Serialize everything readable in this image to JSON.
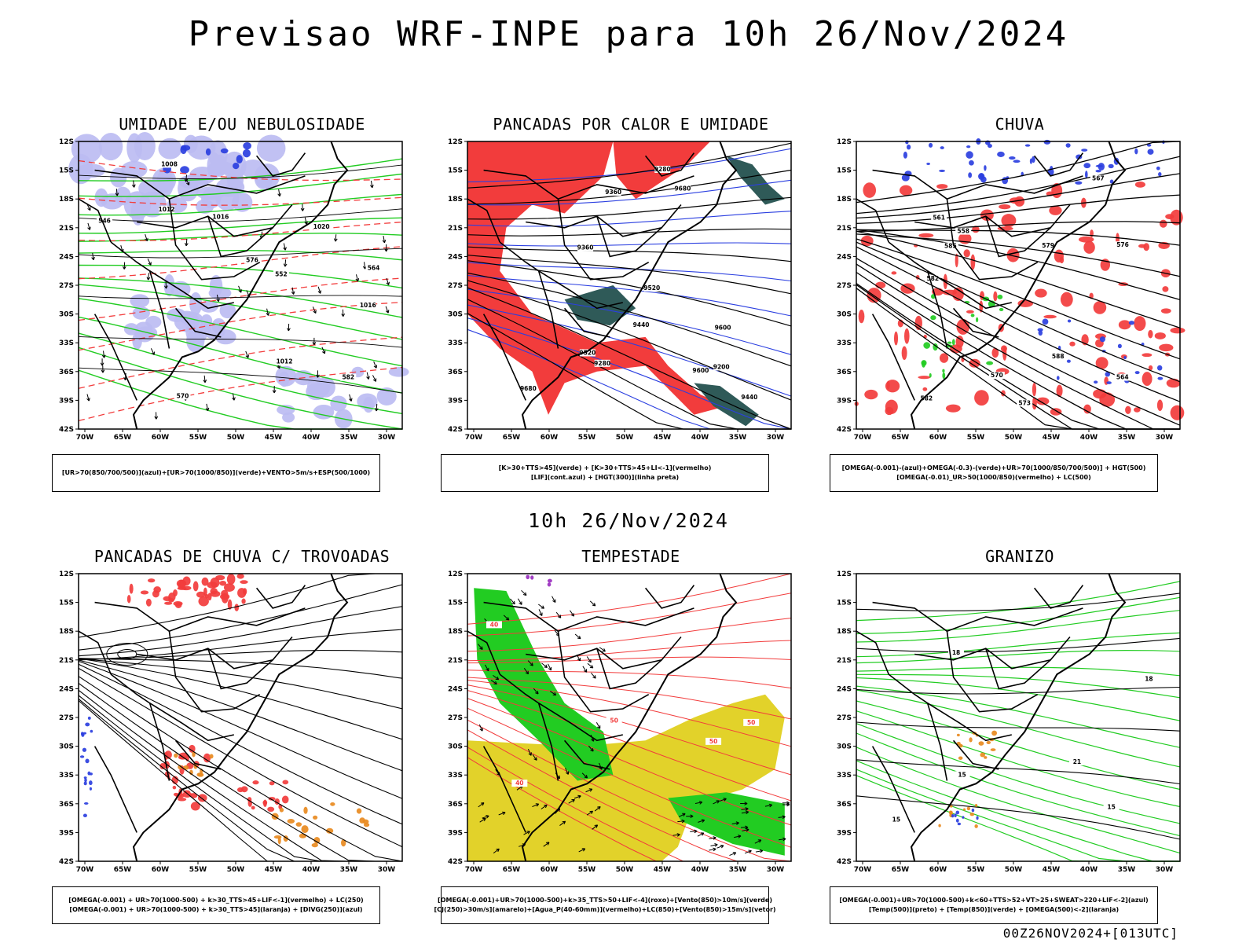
{
  "title": "Previsao WRF-INPE  para 10h 26/Nov/2024",
  "mid_date": "10h 26/Nov/2024",
  "run_id": "00Z26NOV2024+[013UTC]",
  "lat_ticks": [
    "12S",
    "15S",
    "18S",
    "21S",
    "24S",
    "27S",
    "30S",
    "33S",
    "36S",
    "39S",
    "42S"
  ],
  "lon_ticks": [
    "70W",
    "65W",
    "60W",
    "55W",
    "50W",
    "45W",
    "40W",
    "35W",
    "30W"
  ],
  "colors": {
    "red": "#f23c3c",
    "blue": "#2b3fe0",
    "green": "#22cc22",
    "lavender": "#bcbcf2",
    "darkteal": "#2f5a58",
    "yellow": "#e2d22a",
    "orange": "#e88a1f",
    "purple": "#9a2fbf"
  },
  "panels": [
    {
      "title": "UMIDADE E/OU NEBULOSIDADE",
      "legend": [
        "[UR>70(850/700/500)](azul)+[UR>70(1000/850)](verde)+VENTO>5m/s+ESP(500/1000)"
      ],
      "contour_labels": [
        "1016",
        "1012",
        "1020",
        "1016",
        "1012",
        "570",
        "576",
        "582",
        "564",
        "552",
        "546",
        "1008"
      ]
    },
    {
      "title": "PANCADAS POR CALOR E UMIDADE",
      "legend": [
        "[K>30+TTS>45](verde) + [K>30+TTS>45+LI<-1](vermelho)",
        "[LIF](cont.azul) + [HGT(300)](linha preta)"
      ],
      "contour_labels": [
        "9680",
        "9600",
        "9520",
        "9440",
        "9360",
        "9280",
        "9200",
        "9680",
        "9600",
        "9520",
        "9440",
        "9360",
        "9280"
      ]
    },
    {
      "title": "CHUVA",
      "legend": [
        "[OMEGA(-0.001)-(azul)+OMEGA(-0.3)-(verde)+UR>70(1000/850/700/500)] + HGT(500)",
        "[OMEGA(-0.01)_UR>50(1000/850)(vermelho) + LC(500)"
      ],
      "contour_labels": [
        "588",
        "582",
        "576",
        "570",
        "564",
        "561",
        "558",
        "567",
        "573",
        "579",
        "585",
        "582"
      ]
    },
    {
      "title": "PANCADAS DE CHUVA C/ TROVOADAS",
      "legend": [
        "[OMEGA(-0.001) + UR>70(1000-500) + k>30_TTS>45+LIF<-1](vermelho) + LC(250)",
        "[OMEGA(-0.001) + UR>70(1000-500) + k>30_TTS>45](laranja) + [DIVG(250)](azul)"
      ],
      "contour_labels": []
    },
    {
      "title": "TEMPESTADE",
      "legend": [
        "[OMEGA(-0.001)+UR>70(1000-500)+k>35_TTS>50+LIF<-4](roxo)+[Vento(850)>10m/s](verde)",
        "[CJ(250)>30m/s](amarelo)+[Agua_P(40-60mm)](vermelho)+LC(850)+[Vento(850)>15m/s](vetor)"
      ],
      "contour_labels": [
        "50",
        "40",
        "50",
        "40",
        "50"
      ]
    },
    {
      "title": "GRANIZO",
      "legend": [
        "[OMEGA(-0.001)+UR>70(1000-500)+k<60+TTS>52+VT>25+SWEAT>220+LIF<-2](azul)",
        "[Temp(500)](preto) + [Temp(850)](verde) + [OMEGA(500)<-2](laranja)"
      ],
      "contour_labels": [
        "15",
        "15",
        "18",
        "15",
        "18",
        "21"
      ]
    }
  ]
}
